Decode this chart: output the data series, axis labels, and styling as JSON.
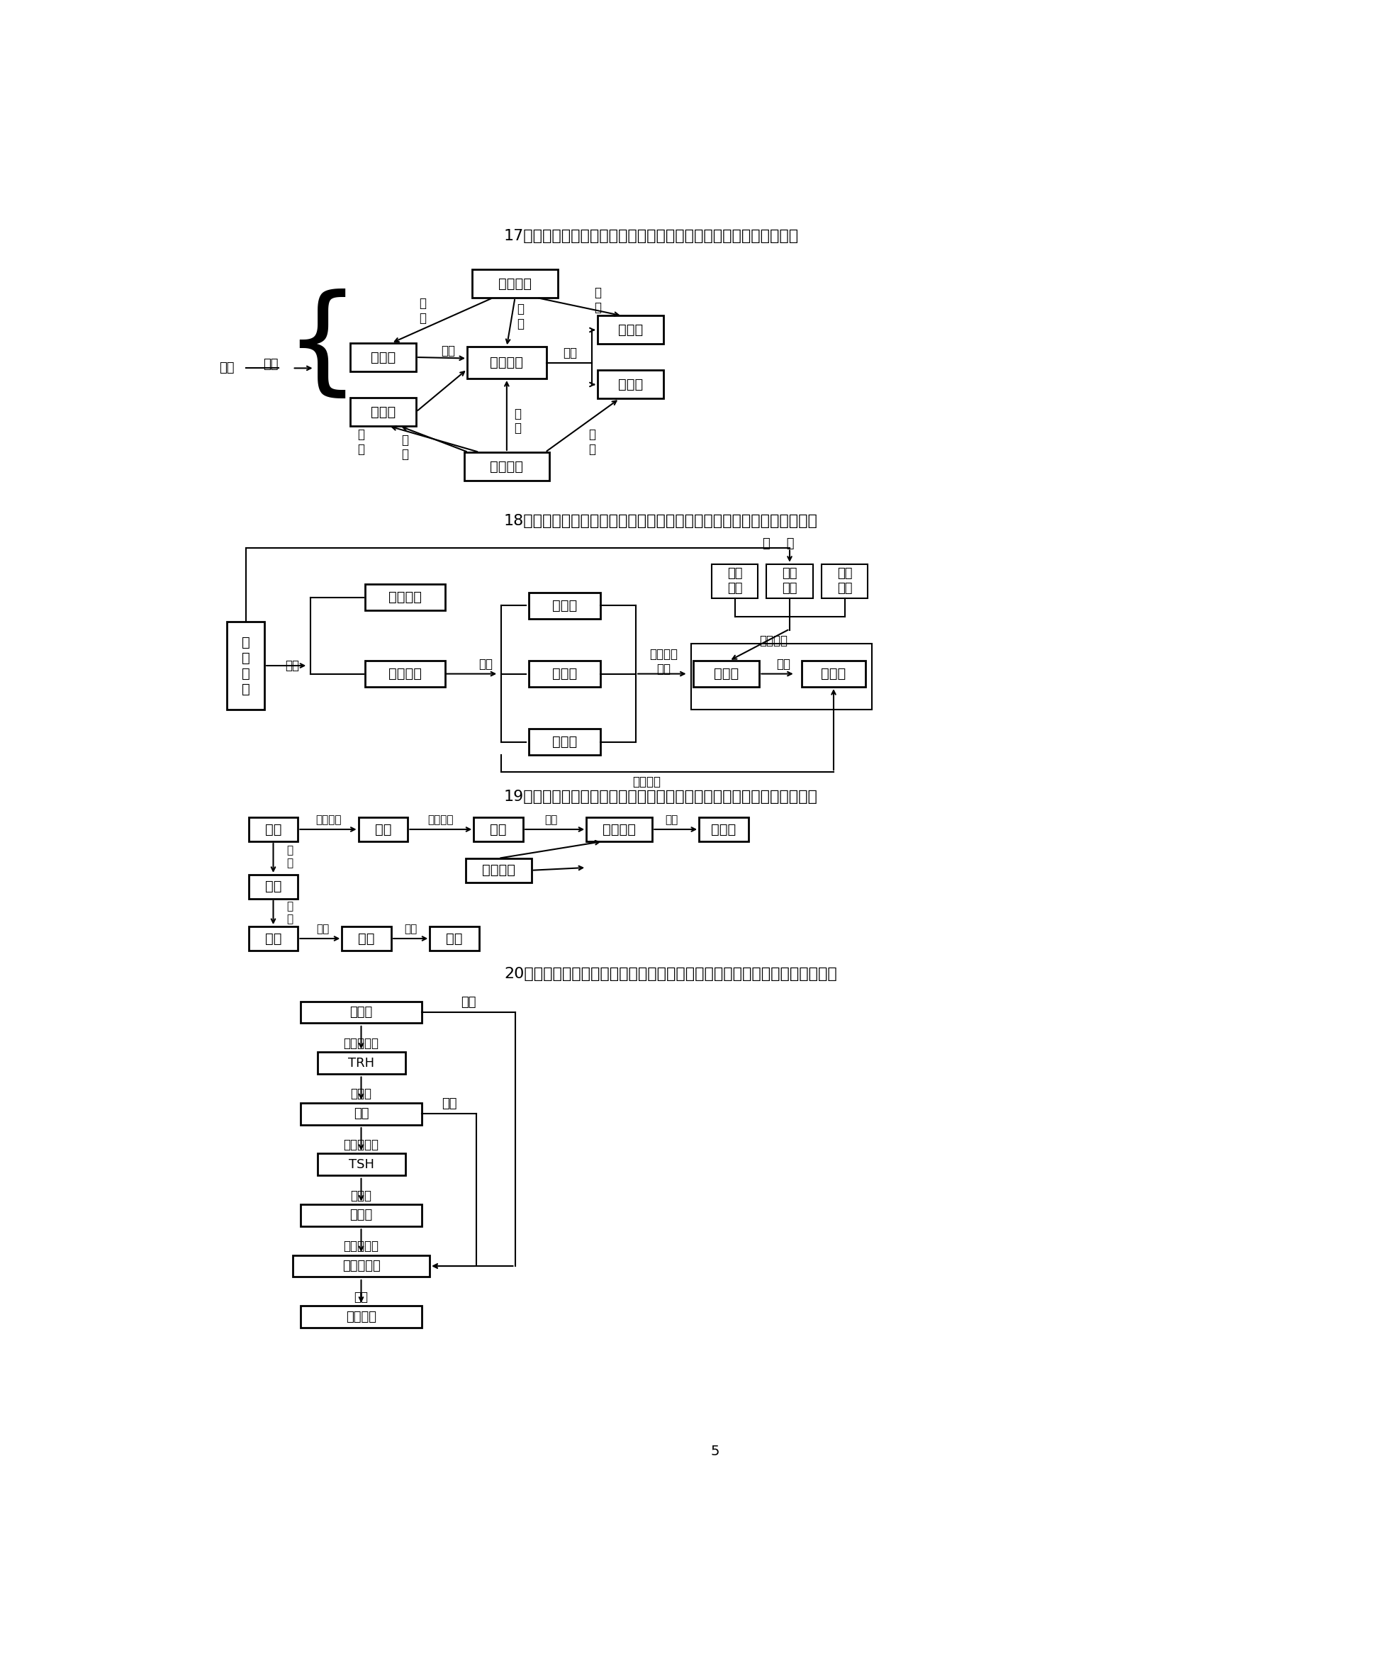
{
  "bg_color": "#ffffff",
  "section17_title": "17、以种群各特征的联系为中心构建生物学概念图，组建知识网络。",
  "section18_title": "18、以生态系统的成分和功能为中心构建生物学概念图，组建知识网络。",
  "section19_title": "19、以生态学基本概念的联系为中心构建生物学概念图，组建知识网络。",
  "section20_title": "20、以反馈调节（或：分级调节）为中心构建生物学概念图，组建知识网络。",
  "page_num": "5"
}
